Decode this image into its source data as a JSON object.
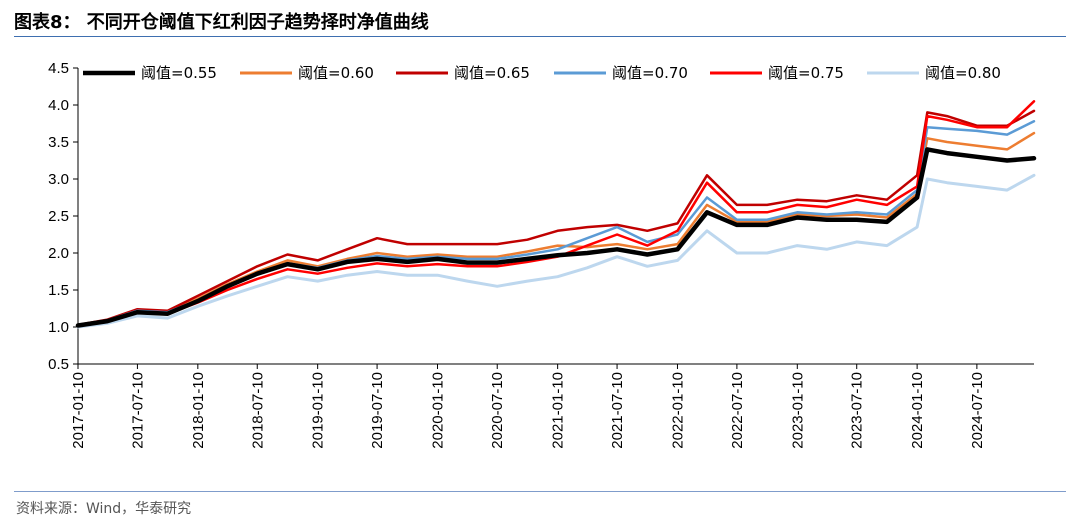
{
  "header": {
    "title": "图表8： 不同开仓阈值下红利因子趋势择时净值曲线"
  },
  "footer": {
    "source": "资料来源：Wind，华泰研究"
  },
  "chart_data": {
    "type": "line",
    "title": "",
    "xlabel": "",
    "ylabel": "",
    "ylim": [
      0.5,
      4.5
    ],
    "yticks": [
      0.5,
      1.0,
      1.5,
      2.0,
      2.5,
      3.0,
      3.5,
      4.0,
      4.5
    ],
    "ytick_labels": [
      "0.5",
      "1.0",
      "1.5",
      "2.0",
      "2.5",
      "3.0",
      "3.5",
      "4.0",
      "4.5"
    ],
    "xlim": [
      "2017-01-10",
      "2024-12-31"
    ],
    "xticks": [
      "2017-01-10",
      "2017-07-10",
      "2018-01-10",
      "2018-07-10",
      "2019-01-10",
      "2019-07-10",
      "2020-01-10",
      "2020-07-10",
      "2021-01-10",
      "2021-07-10",
      "2022-01-10",
      "2022-07-10",
      "2023-01-10",
      "2023-07-10",
      "2024-01-10",
      "2024-07-10"
    ],
    "grid": false,
    "legend_position": "top",
    "x": [
      "2017-01-10",
      "2017-04-10",
      "2017-07-10",
      "2017-10-10",
      "2018-01-10",
      "2018-04-10",
      "2018-07-10",
      "2018-10-10",
      "2019-01-10",
      "2019-04-10",
      "2019-07-10",
      "2019-10-10",
      "2020-01-10",
      "2020-04-10",
      "2020-07-10",
      "2020-10-10",
      "2021-01-10",
      "2021-04-10",
      "2021-07-10",
      "2021-10-10",
      "2022-01-10",
      "2022-04-10",
      "2022-07-10",
      "2022-10-10",
      "2023-01-10",
      "2023-04-10",
      "2023-07-10",
      "2023-10-10",
      "2024-01-10",
      "2024-02-10",
      "2024-04-10",
      "2024-07-10",
      "2024-10-10",
      "2024-12-31"
    ],
    "series": [
      {
        "name": "阈值=0.55",
        "color": "#000000",
        "width": 4.5,
        "values": [
          1.02,
          1.08,
          1.2,
          1.18,
          1.35,
          1.55,
          1.72,
          1.85,
          1.78,
          1.88,
          1.92,
          1.88,
          1.92,
          1.87,
          1.87,
          1.92,
          1.97,
          2.0,
          2.05,
          1.98,
          2.05,
          2.55,
          2.38,
          2.38,
          2.48,
          2.45,
          2.45,
          2.42,
          2.75,
          3.4,
          3.35,
          3.3,
          3.25,
          3.28
        ]
      },
      {
        "name": "阈值=0.60",
        "color": "#ed7d31",
        "width": 2.5,
        "values": [
          1.02,
          1.09,
          1.22,
          1.2,
          1.38,
          1.58,
          1.75,
          1.9,
          1.82,
          1.92,
          2.0,
          1.95,
          1.98,
          1.95,
          1.95,
          2.02,
          2.1,
          2.08,
          2.12,
          2.05,
          2.12,
          2.65,
          2.42,
          2.42,
          2.52,
          2.5,
          2.52,
          2.48,
          2.8,
          3.55,
          3.5,
          3.45,
          3.4,
          3.62
        ]
      },
      {
        "name": "阈值=0.65",
        "color": "#c00000",
        "width": 2.5,
        "values": [
          1.03,
          1.1,
          1.24,
          1.22,
          1.42,
          1.62,
          1.82,
          1.98,
          1.9,
          2.05,
          2.2,
          2.12,
          2.12,
          2.12,
          2.12,
          2.18,
          2.3,
          2.35,
          2.38,
          2.3,
          2.4,
          3.05,
          2.65,
          2.65,
          2.72,
          2.7,
          2.78,
          2.72,
          3.05,
          3.9,
          3.85,
          3.72,
          3.72,
          3.92
        ]
      },
      {
        "name": "阈值=0.70",
        "color": "#5b9bd5",
        "width": 2.5,
        "values": [
          1.02,
          1.09,
          1.22,
          1.2,
          1.36,
          1.55,
          1.72,
          1.86,
          1.8,
          1.9,
          1.96,
          1.92,
          1.95,
          1.92,
          1.92,
          1.98,
          2.05,
          2.2,
          2.35,
          2.15,
          2.25,
          2.75,
          2.45,
          2.45,
          2.55,
          2.52,
          2.55,
          2.52,
          2.85,
          3.7,
          3.68,
          3.65,
          3.6,
          3.78
        ]
      },
      {
        "name": "阈值=0.75",
        "color": "#ff0000",
        "width": 2.5,
        "values": [
          1.02,
          1.08,
          1.2,
          1.18,
          1.33,
          1.5,
          1.65,
          1.78,
          1.72,
          1.8,
          1.86,
          1.82,
          1.85,
          1.82,
          1.82,
          1.88,
          1.95,
          2.1,
          2.25,
          2.1,
          2.3,
          2.95,
          2.55,
          2.55,
          2.65,
          2.62,
          2.72,
          2.65,
          2.9,
          3.85,
          3.8,
          3.7,
          3.7,
          4.05
        ]
      },
      {
        "name": "阈值=0.80",
        "color": "#bdd7ee",
        "width": 3,
        "values": [
          1.0,
          1.05,
          1.15,
          1.12,
          1.28,
          1.42,
          1.55,
          1.68,
          1.62,
          1.7,
          1.75,
          1.7,
          1.7,
          1.62,
          1.55,
          1.62,
          1.68,
          1.8,
          1.95,
          1.82,
          1.9,
          2.3,
          2.0,
          2.0,
          2.1,
          2.05,
          2.15,
          2.1,
          2.35,
          3.0,
          2.95,
          2.9,
          2.85,
          3.05
        ]
      }
    ]
  }
}
